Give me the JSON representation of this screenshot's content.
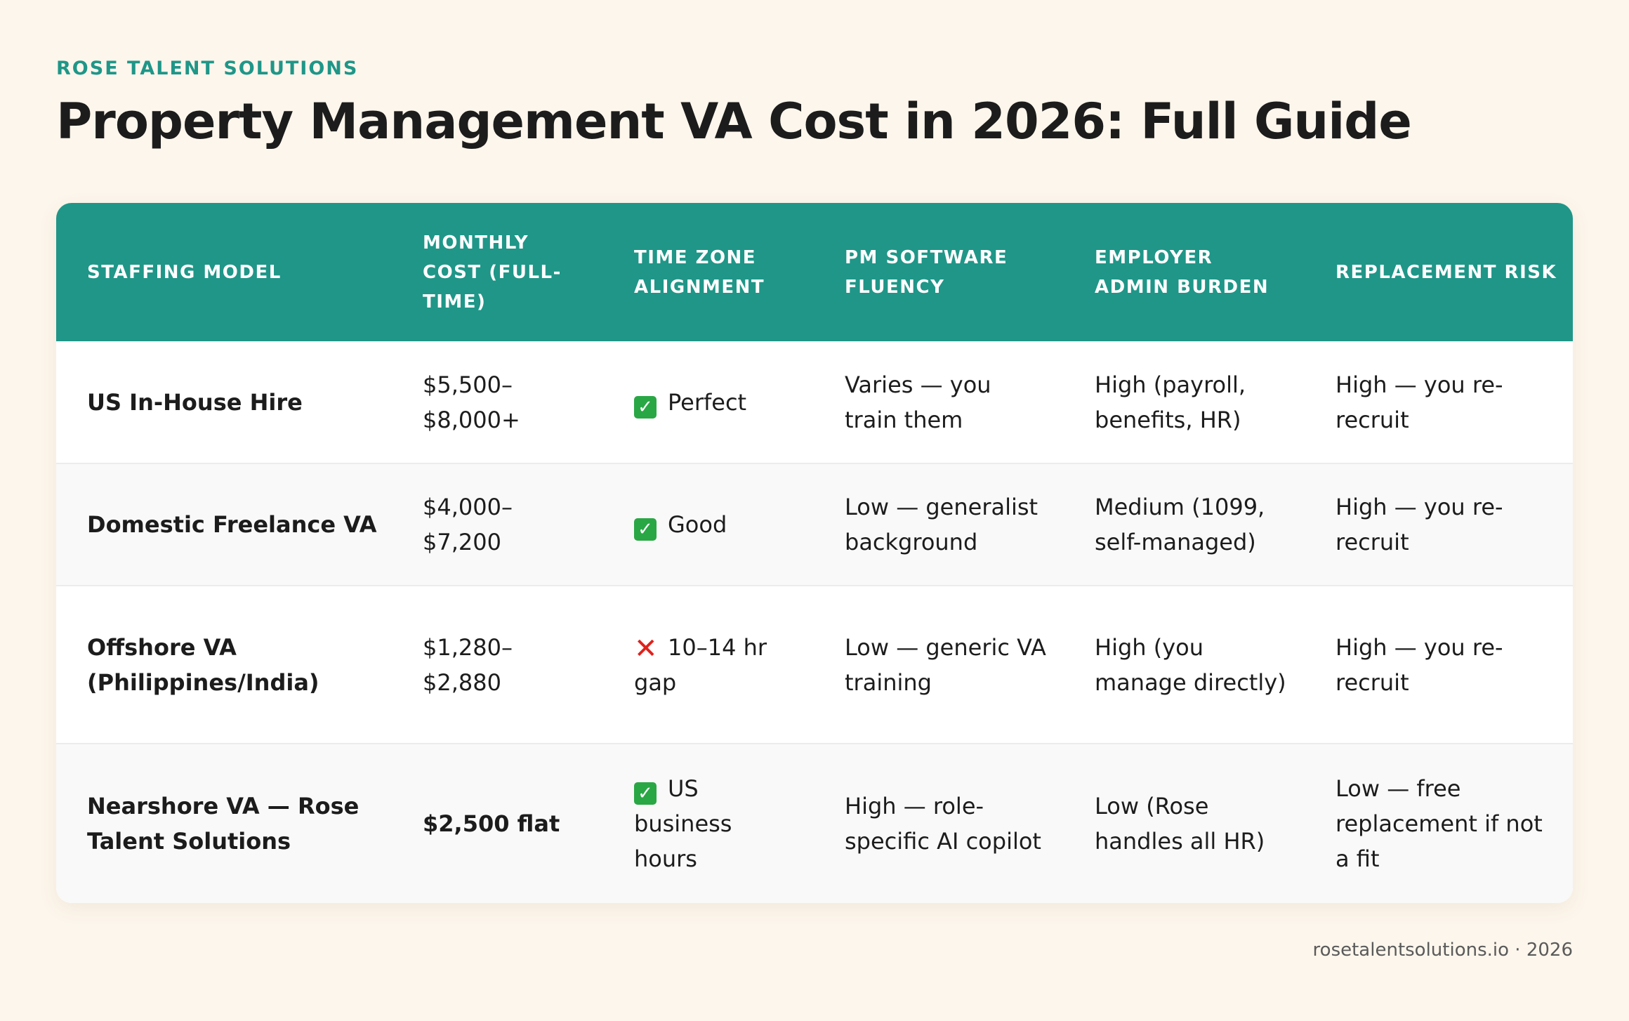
{
  "brand": "ROSE TALENT SOLUTIONS",
  "title": "Property Management VA Cost in 2026: Full Guide",
  "colors": {
    "accent": "#1f9688",
    "background": "#fdf6ec",
    "check": "#29a744",
    "cross": "#e0211b"
  },
  "table": {
    "headers": [
      "STAFFING MODEL",
      "MONTHLY COST (FULL-TIME)",
      "TIME ZONE ALIGNMENT",
      "PM SOFTWARE FLUENCY",
      "EMPLOYER ADMIN BURDEN",
      "REPLACEMENT RISK"
    ],
    "rows": [
      {
        "model": "US In-House Hire",
        "cost": "$5,500–$8,000+",
        "timezone_icon": "check-icon",
        "timezone": "Perfect",
        "software": "Varies — you train them",
        "admin": "High (payroll, benefits, HR)",
        "risk": "High — you re-recruit"
      },
      {
        "model": "Domestic Freelance VA",
        "cost": "$4,000–$7,200",
        "timezone_icon": "check-icon",
        "timezone": "Good",
        "software": "Low — generalist background",
        "admin": "Medium (1099, self-managed)",
        "risk": "High — you re-recruit"
      },
      {
        "model": "Offshore VA (Philippines/India)",
        "cost": "$1,280–$2,880",
        "timezone_icon": "cross-icon",
        "timezone": "10–14 hr gap",
        "software": "Low — generic VA training",
        "admin": "High (you manage directly)",
        "risk": "High — you re-recruit"
      },
      {
        "model": "Nearshore VA — Rose Talent Solutions",
        "cost": "$2,500 flat",
        "timezone_icon": "check-icon",
        "timezone": "US business hours",
        "software": "High — role-specific AI copilot",
        "admin": "Low (Rose handles all HR)",
        "risk": "Low — free replacement if not a fit"
      }
    ]
  },
  "footer": "rosetalentsolutions.io · 2026"
}
